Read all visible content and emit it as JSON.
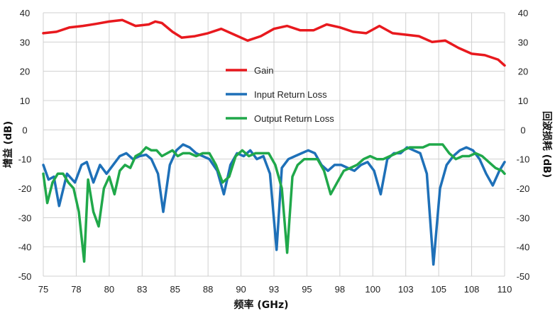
{
  "chart_data": {
    "type": "line",
    "title": "",
    "xlabel": "频率 (GHz)",
    "ylabel_left": "增益 (dB)",
    "ylabel_right": "回波损耗 (dB)",
    "xlim": [
      75,
      110
    ],
    "ylim": [
      -50,
      40
    ],
    "x_tick_labels": [
      "75",
      "78",
      "80",
      "83",
      "85",
      "88",
      "90",
      "93",
      "95",
      "98",
      "100",
      "103",
      "105",
      "108",
      "110"
    ],
    "y_ticks": [
      40,
      30,
      20,
      10,
      0,
      -10,
      -20,
      -30,
      -40,
      -50
    ],
    "grid": true,
    "legend_placement": "center",
    "series": [
      {
        "name": "Gain",
        "color": "#e8191e",
        "points": [
          [
            75,
            33
          ],
          [
            76,
            33.5
          ],
          [
            77,
            35
          ],
          [
            78,
            35.5
          ],
          [
            79,
            36.2
          ],
          [
            80,
            37
          ],
          [
            81,
            37.5
          ],
          [
            82,
            35.5
          ],
          [
            83,
            36
          ],
          [
            83.5,
            37
          ],
          [
            84,
            36.5
          ],
          [
            84.8,
            33.5
          ],
          [
            85.5,
            31.5
          ],
          [
            86.5,
            32
          ],
          [
            87.5,
            33
          ],
          [
            88.5,
            34.5
          ],
          [
            89.5,
            32.5
          ],
          [
            90.5,
            30.5
          ],
          [
            91.5,
            32
          ],
          [
            92.5,
            34.5
          ],
          [
            93.5,
            35.5
          ],
          [
            94.5,
            34
          ],
          [
            95.5,
            34
          ],
          [
            96.5,
            36
          ],
          [
            97.5,
            35
          ],
          [
            98.5,
            33.5
          ],
          [
            99.5,
            33
          ],
          [
            100.5,
            35.5
          ],
          [
            101.5,
            33
          ],
          [
            102.5,
            32.5
          ],
          [
            103.5,
            32
          ],
          [
            104.5,
            30
          ],
          [
            105.5,
            30.5
          ],
          [
            106.5,
            28
          ],
          [
            107.5,
            26
          ],
          [
            108.5,
            25.5
          ],
          [
            109.5,
            24
          ],
          [
            110,
            22
          ]
        ]
      },
      {
        "name": "Input Return Loss",
        "color": "#1e70b8",
        "points": [
          [
            75,
            -12
          ],
          [
            75.4,
            -17
          ],
          [
            75.8,
            -16
          ],
          [
            76.2,
            -26
          ],
          [
            76.8,
            -15
          ],
          [
            77.4,
            -18
          ],
          [
            77.9,
            -12
          ],
          [
            78.3,
            -11
          ],
          [
            78.8,
            -18
          ],
          [
            79.3,
            -12
          ],
          [
            79.8,
            -15
          ],
          [
            80.3,
            -12
          ],
          [
            80.8,
            -9
          ],
          [
            81.3,
            -8
          ],
          [
            81.8,
            -10
          ],
          [
            82.3,
            -9
          ],
          [
            82.8,
            -8.5
          ],
          [
            83.2,
            -10
          ],
          [
            83.7,
            -15
          ],
          [
            84.1,
            -28
          ],
          [
            84.6,
            -12
          ],
          [
            85.1,
            -7
          ],
          [
            85.6,
            -5
          ],
          [
            86.1,
            -6
          ],
          [
            86.6,
            -8
          ],
          [
            87.1,
            -9
          ],
          [
            87.6,
            -10
          ],
          [
            88.2,
            -14
          ],
          [
            88.7,
            -22
          ],
          [
            89.2,
            -12
          ],
          [
            89.7,
            -8
          ],
          [
            90.2,
            -9
          ],
          [
            90.7,
            -7
          ],
          [
            91.2,
            -10
          ],
          [
            91.7,
            -9
          ],
          [
            92.2,
            -15
          ],
          [
            92.7,
            -41
          ],
          [
            93.1,
            -13
          ],
          [
            93.6,
            -10
          ],
          [
            94.1,
            -9
          ],
          [
            94.6,
            -8
          ],
          [
            95.1,
            -7
          ],
          [
            95.6,
            -8
          ],
          [
            96.1,
            -12
          ],
          [
            96.6,
            -14
          ],
          [
            97.1,
            -12
          ],
          [
            97.6,
            -12
          ],
          [
            98.1,
            -13
          ],
          [
            98.6,
            -14
          ],
          [
            99.1,
            -12
          ],
          [
            99.6,
            -11
          ],
          [
            100.1,
            -14
          ],
          [
            100.6,
            -22
          ],
          [
            101.1,
            -10
          ],
          [
            101.6,
            -8
          ],
          [
            102.1,
            -8
          ],
          [
            102.6,
            -6
          ],
          [
            103.1,
            -7
          ],
          [
            103.6,
            -8
          ],
          [
            104.1,
            -15
          ],
          [
            104.6,
            -46
          ],
          [
            105.1,
            -20
          ],
          [
            105.6,
            -12
          ],
          [
            106.1,
            -9
          ],
          [
            106.6,
            -7
          ],
          [
            107.1,
            -6
          ],
          [
            107.6,
            -7
          ],
          [
            108.1,
            -10
          ],
          [
            108.6,
            -15
          ],
          [
            109.1,
            -19
          ],
          [
            109.6,
            -14
          ],
          [
            110,
            -11
          ]
        ]
      },
      {
        "name": "Output Return Loss",
        "color": "#20a84a",
        "points": [
          [
            75,
            -15
          ],
          [
            75.3,
            -25
          ],
          [
            75.7,
            -18
          ],
          [
            76.1,
            -15
          ],
          [
            76.5,
            -15
          ],
          [
            76.9,
            -18
          ],
          [
            77.3,
            -20
          ],
          [
            77.7,
            -28
          ],
          [
            78.1,
            -45
          ],
          [
            78.4,
            -17
          ],
          [
            78.8,
            -28
          ],
          [
            79.2,
            -33
          ],
          [
            79.6,
            -20
          ],
          [
            80,
            -16
          ],
          [
            80.4,
            -22
          ],
          [
            80.8,
            -14
          ],
          [
            81.2,
            -12
          ],
          [
            81.6,
            -13
          ],
          [
            82,
            -9
          ],
          [
            82.4,
            -8
          ],
          [
            82.8,
            -6
          ],
          [
            83.2,
            -7
          ],
          [
            83.6,
            -7
          ],
          [
            84,
            -9
          ],
          [
            84.4,
            -8
          ],
          [
            84.8,
            -7
          ],
          [
            85.2,
            -9
          ],
          [
            85.6,
            -8
          ],
          [
            86.1,
            -8
          ],
          [
            86.6,
            -9
          ],
          [
            87.1,
            -8
          ],
          [
            87.6,
            -8
          ],
          [
            88.1,
            -12
          ],
          [
            88.6,
            -18
          ],
          [
            89.1,
            -16
          ],
          [
            89.6,
            -9
          ],
          [
            90.1,
            -7
          ],
          [
            90.6,
            -9
          ],
          [
            91.1,
            -8
          ],
          [
            91.6,
            -8
          ],
          [
            92.1,
            -8
          ],
          [
            92.6,
            -12
          ],
          [
            93.1,
            -20
          ],
          [
            93.5,
            -42
          ],
          [
            93.9,
            -16
          ],
          [
            94.3,
            -12
          ],
          [
            94.8,
            -10
          ],
          [
            95.3,
            -10
          ],
          [
            95.8,
            -10
          ],
          [
            96.3,
            -14
          ],
          [
            96.8,
            -22
          ],
          [
            97.3,
            -18
          ],
          [
            97.8,
            -14
          ],
          [
            98.3,
            -13
          ],
          [
            98.8,
            -12
          ],
          [
            99.3,
            -10
          ],
          [
            99.8,
            -9
          ],
          [
            100.3,
            -10
          ],
          [
            100.8,
            -10
          ],
          [
            101.3,
            -9
          ],
          [
            101.8,
            -8
          ],
          [
            102.3,
            -7
          ],
          [
            102.8,
            -6
          ],
          [
            103.3,
            -6
          ],
          [
            103.8,
            -6
          ],
          [
            104.3,
            -5
          ],
          [
            104.8,
            -5
          ],
          [
            105.3,
            -5
          ],
          [
            105.8,
            -8
          ],
          [
            106.3,
            -10
          ],
          [
            106.8,
            -9
          ],
          [
            107.3,
            -9
          ],
          [
            107.8,
            -8
          ],
          [
            108.3,
            -9
          ],
          [
            108.8,
            -11
          ],
          [
            109.3,
            -13
          ],
          [
            109.8,
            -14
          ],
          [
            110,
            -15
          ]
        ]
      }
    ]
  }
}
